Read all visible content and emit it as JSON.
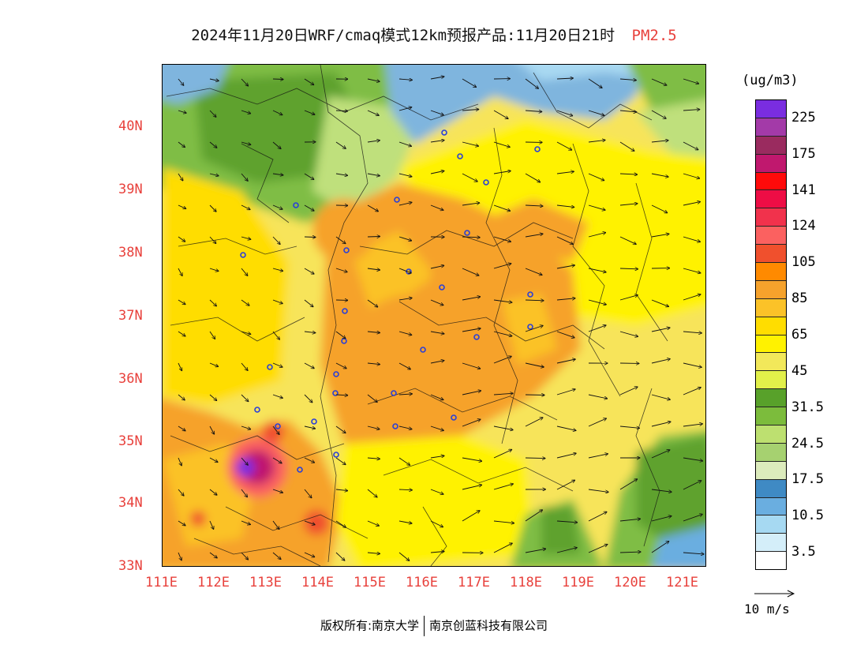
{
  "title": {
    "main": "2024年11月20日WRF/cmaq模式12km预报产品:11月20日21时",
    "pollutant": "PM2.5"
  },
  "map": {
    "lat_labels": [
      "40N",
      "39N",
      "38N",
      "37N",
      "36N",
      "35N",
      "34N",
      "33N"
    ],
    "lon_labels": [
      "111E",
      "112E",
      "113E",
      "114E",
      "115E",
      "116E",
      "117E",
      "118E",
      "119E",
      "120E",
      "121E"
    ],
    "lon_range": [
      111,
      121.4
    ],
    "lat_range": [
      33,
      41
    ],
    "wind_reference_label": "10 m/s"
  },
  "legend": {
    "units": "(ug/m3)",
    "labels": [
      "225",
      "175",
      "141",
      "124",
      "105",
      "85",
      "65",
      "45",
      "31.5",
      "24.5",
      "17.5",
      "10.5",
      "3.5"
    ],
    "colors_top_to_bottom": [
      "#7a2de0",
      "#a33aa8",
      "#9a2b5f",
      "#c0186e",
      "#ff0a0a",
      "#ee0d45",
      "#f1324c",
      "#fb6160",
      "#f0502d",
      "#ff8a00",
      "#f6a22c",
      "#fbc228",
      "#ffdd00",
      "#fff200",
      "#f2e85a",
      "#e2f04a",
      "#58a12a",
      "#7cbc3c",
      "#bde070",
      "#a6d170",
      "#dcebbc",
      "#3f8ac4",
      "#6aaee0",
      "#a6d9f2",
      "#d4eef9",
      "#ffffff"
    ]
  },
  "footer": {
    "left": "版权所有:南京大学",
    "right": "南京创蓝科技有限公司"
  }
}
